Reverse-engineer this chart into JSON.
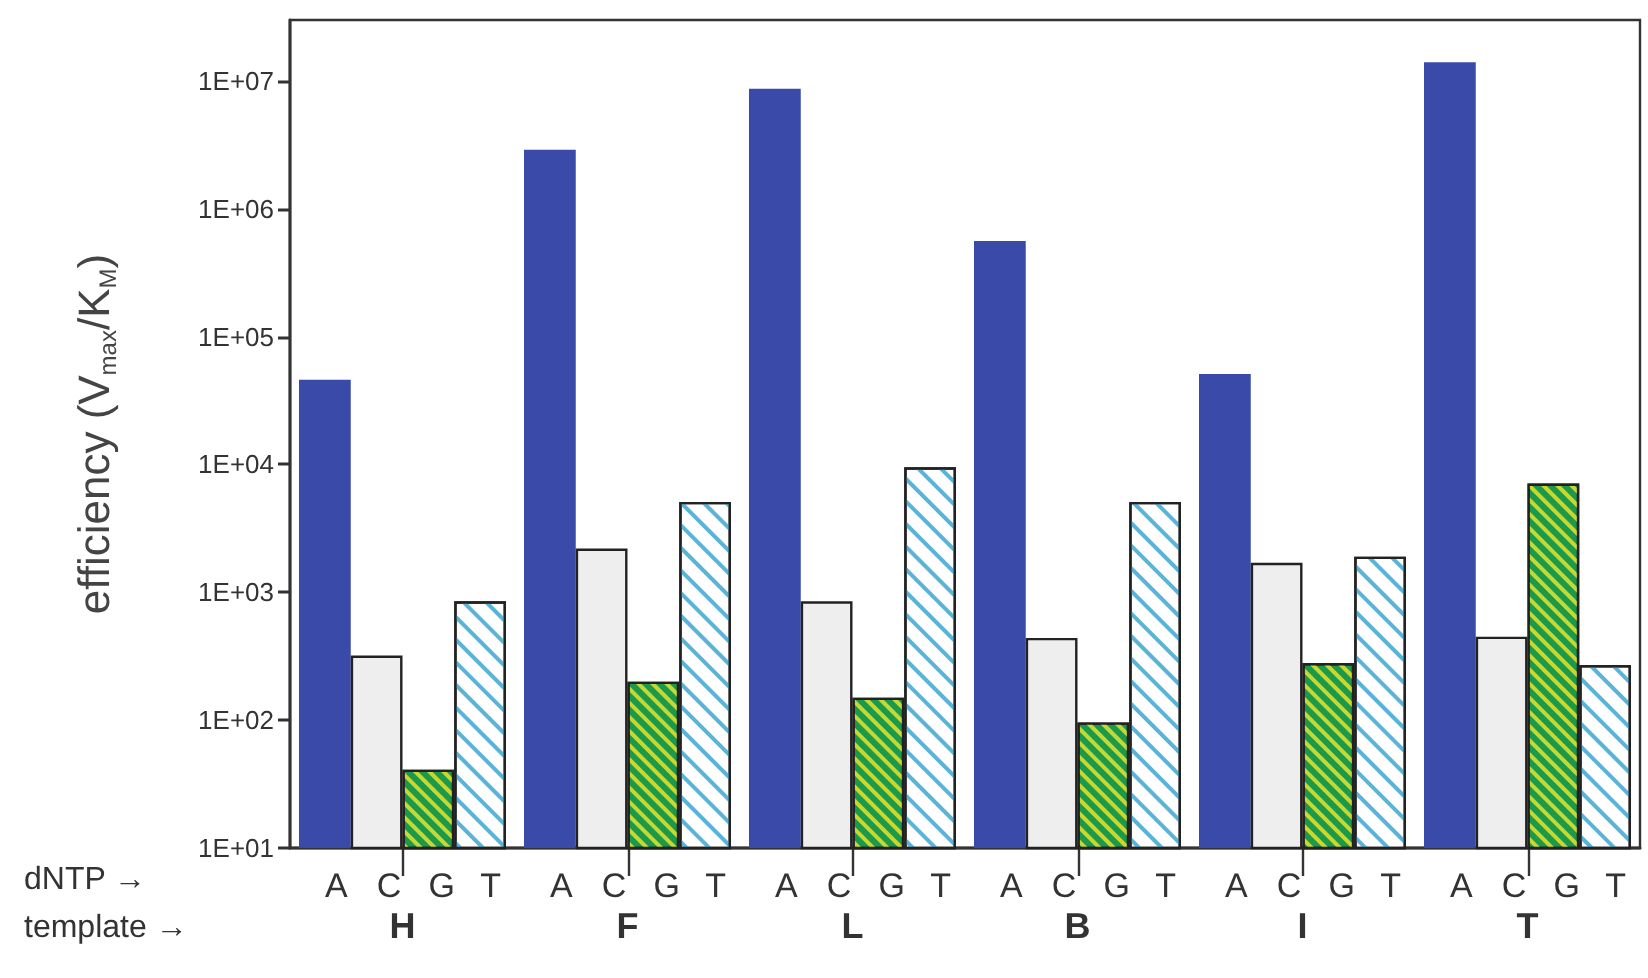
{
  "chart_data": {
    "type": "bar",
    "ylabel": "efficiency (V$_{max}$/K$_{M}$)",
    "xlabel": "template →",
    "annotations": [
      "dNTP →"
    ],
    "categories": [
      "H",
      "F",
      "L",
      "B",
      "I",
      "T"
    ],
    "log": true,
    "ylim": [
      10,
      30000000
    ],
    "yticks": [
      {
        "value": 10,
        "label": "1E+01"
      },
      {
        "value": 100,
        "label": "1E+02"
      },
      {
        "value": 1000,
        "label": "1E+03"
      },
      {
        "value": 10000,
        "label": "1E+04"
      },
      {
        "value": 100000,
        "label": "1E+05"
      },
      {
        "value": 1000000,
        "label": "1E+06"
      },
      {
        "value": 10000000,
        "label": "1E+07"
      }
    ],
    "grid": false,
    "legend": false,
    "series": [
      {
        "name": "A",
        "color": "#3a4aa8",
        "values": [
          46000,
          2900000,
          8700000,
          560000,
          51000,
          14000000
        ]
      },
      {
        "name": "C",
        "color": "#eeeeee",
        "values": [
          320,
          2200,
          850,
          440,
          1700,
          450
        ]
      },
      {
        "name": "G",
        "color": "#1a9a4a",
        "values": [
          41,
          200,
          150,
          96,
          280,
          7100
        ]
      },
      {
        "name": "T",
        "color": "#ffffff",
        "values": [
          850,
          5100,
          9500,
          5100,
          1900,
          270
        ]
      }
    ]
  }
}
